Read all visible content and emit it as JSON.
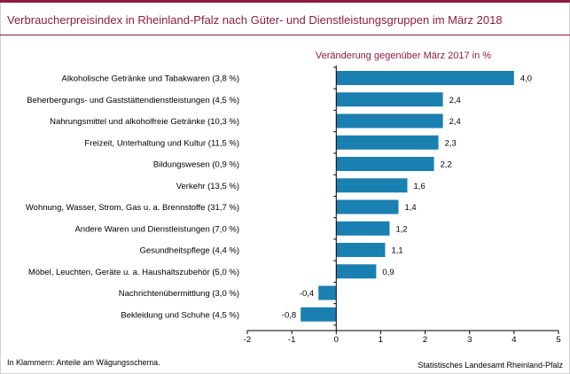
{
  "title": "Verbraucherpreisindex in Rheinland-Pfalz nach Güter- und Dienstleistungsgruppen im März 2018",
  "footer_note": "In Klammern: Anteile am Wägungsschema.",
  "source": "Statistisches Landesamt Rheinland-Pfalz",
  "colors": {
    "bar": "#1a7fb1",
    "accent": "#8c1d3f"
  },
  "chart_data": {
    "type": "bar",
    "orientation": "horizontal",
    "subtitle": "Veränderung gegenüber März 2017 in %",
    "categories": [
      "Alkoholische Getränke und Tabakwaren (3,8 %)",
      "Beherbergungs- und Gaststättendienstleistungen (4,5 %)",
      "Nahrungsmittel und alkoholfreie Getränke (10,3 %)",
      "Freizeit, Unterhaltung und Kultur (11,5 %)",
      "Bildungswesen (0,9 %)",
      "Verkehr (13,5 %)",
      "Wohnung, Wasser, Strom, Gas u. a. Brennstoffe (31,7 %)",
      "Andere Waren und Dienstleistungen (7,0 %)",
      "Gesundheitspflege (4,4 %)",
      "Möbel, Leuchten, Geräte u. a. Haushaltszubehör (5,0 %)",
      "Nachrichtenübermittlung (3,0 %)",
      "Bekleidung und Schuhe (4,5 %)"
    ],
    "values": [
      4.0,
      2.4,
      2.4,
      2.3,
      2.2,
      1.6,
      1.4,
      1.2,
      1.1,
      0.9,
      -0.4,
      -0.8
    ],
    "value_labels": [
      "4,0",
      "2,4",
      "2,4",
      "2,3",
      "2,2",
      "1,6",
      "1,4",
      "1,2",
      "1,1",
      "0,9",
      "-0,4",
      "-0,8"
    ],
    "xlim": [
      -2,
      5
    ],
    "xticks": [
      -2,
      -1,
      0,
      1,
      2,
      3,
      4,
      5
    ],
    "xtick_labels": [
      "-2",
      "-1",
      "0",
      "1",
      "2",
      "3",
      "4",
      "5"
    ],
    "grid": false,
    "legend": "none"
  }
}
